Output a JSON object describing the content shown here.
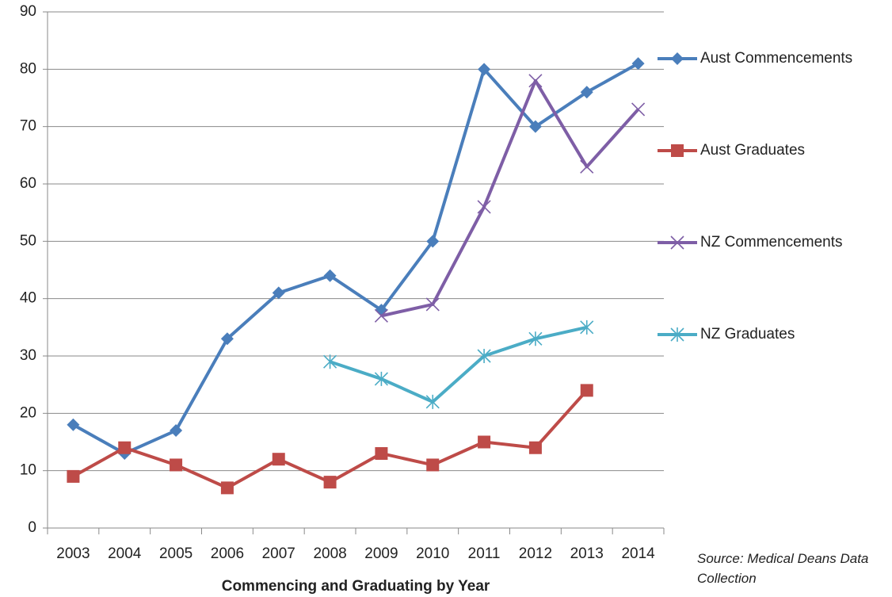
{
  "chart_data": {
    "type": "line",
    "xlabel": "Commencing and Graduating by Year",
    "source": "Source: Medical Deans Data Collection",
    "categories": [
      "2003",
      "2004",
      "2005",
      "2006",
      "2007",
      "2008",
      "2009",
      "2010",
      "2011",
      "2012",
      "2013",
      "2014"
    ],
    "series": [
      {
        "name": "Aust Commencements",
        "color": "#4a7ebb",
        "marker": "diamond",
        "values": [
          18,
          13,
          17,
          33,
          41,
          44,
          38,
          50,
          80,
          70,
          76,
          81
        ]
      },
      {
        "name": "Aust Graduates",
        "color": "#be4b48",
        "marker": "square",
        "values": [
          9,
          14,
          11,
          7,
          12,
          8,
          13,
          11,
          15,
          14,
          24,
          null
        ]
      },
      {
        "name": "NZ Commencements",
        "color": "#7e5ea6",
        "marker": "x",
        "values": [
          null,
          null,
          null,
          null,
          null,
          null,
          37,
          39,
          56,
          78,
          63,
          73
        ]
      },
      {
        "name": "NZ Graduates",
        "color": "#4bacc6",
        "marker": "asterisk",
        "values": [
          null,
          null,
          null,
          null,
          null,
          29,
          26,
          22,
          30,
          33,
          35,
          null
        ]
      }
    ],
    "ylim": [
      0,
      90
    ],
    "yticks": [
      0,
      10,
      20,
      30,
      40,
      50,
      60,
      70,
      80,
      90
    ],
    "grid": true,
    "legend": "right"
  }
}
